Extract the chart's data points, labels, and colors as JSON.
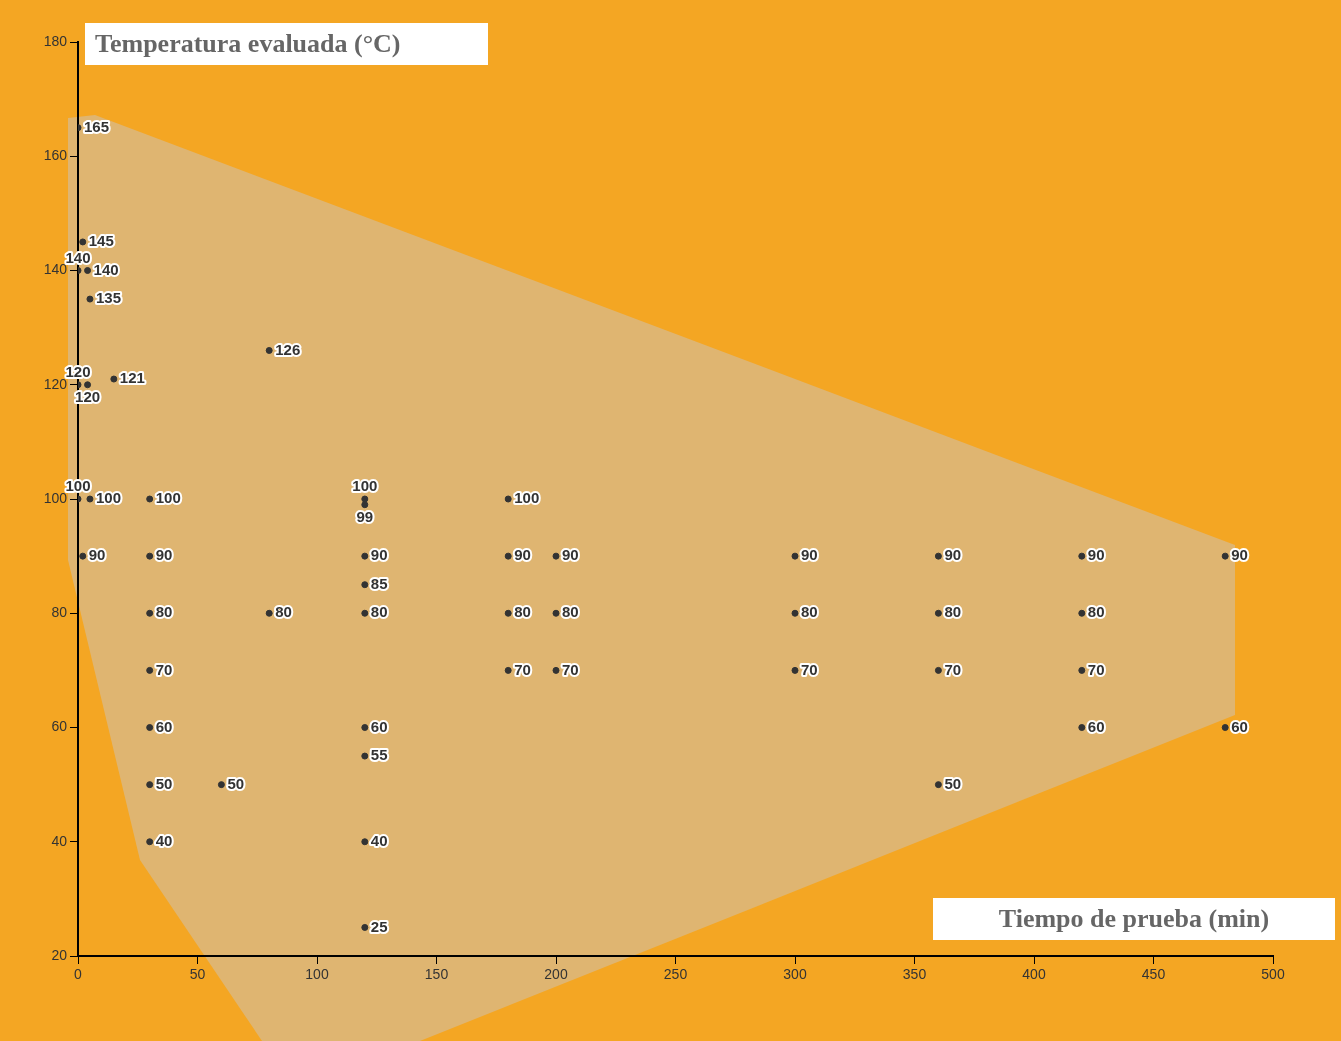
{
  "chart_data": {
    "type": "scatter",
    "xlabel": "Tiempo de prueba (min)",
    "ylabel": "Temperatura evaluada (°C)",
    "x": [
      0,
      2,
      0,
      4,
      5,
      0,
      4,
      15,
      80,
      0,
      5,
      30,
      120,
      120,
      180,
      2,
      30,
      120,
      180,
      200,
      300,
      360,
      420,
      480,
      120,
      30,
      80,
      120,
      180,
      200,
      300,
      360,
      420,
      30,
      180,
      200,
      300,
      360,
      420,
      30,
      120,
      420,
      480,
      120,
      30,
      60,
      360,
      30,
      120,
      120
    ],
    "values": [
      165,
      145,
      140,
      140,
      135,
      120,
      120,
      121,
      126,
      100,
      100,
      100,
      100,
      99,
      100,
      90,
      90,
      90,
      90,
      90,
      90,
      90,
      90,
      90,
      85,
      80,
      80,
      80,
      80,
      80,
      80,
      80,
      80,
      70,
      70,
      70,
      70,
      70,
      70,
      60,
      60,
      60,
      60,
      55,
      50,
      50,
      50,
      40,
      40,
      25
    ],
    "color": "#333333",
    "marker": "circle",
    "data_labels": true,
    "grid": false,
    "legend": false,
    "xlim": [
      0,
      500
    ],
    "xticks": [
      0,
      50,
      100,
      150,
      200,
      250,
      300,
      350,
      400,
      450,
      500
    ],
    "ylim": [
      20,
      180
    ],
    "yticks": [
      20,
      40,
      60,
      80,
      100,
      120,
      140,
      160,
      180
    ]
  }
}
